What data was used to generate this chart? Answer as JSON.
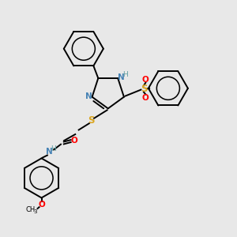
{
  "bg_color": "#e8e8e8",
  "bond_color": "#000000",
  "n_color": "#4682B4",
  "s_color": "#DAA520",
  "o_color": "#FF0000",
  "h_color": "#5F9EA0",
  "figsize": [
    3.0,
    3.0
  ],
  "dpi": 100,
  "lw": 1.4,
  "fs": 7.5,
  "xlim": [
    0,
    10
  ],
  "ylim": [
    0,
    10
  ]
}
